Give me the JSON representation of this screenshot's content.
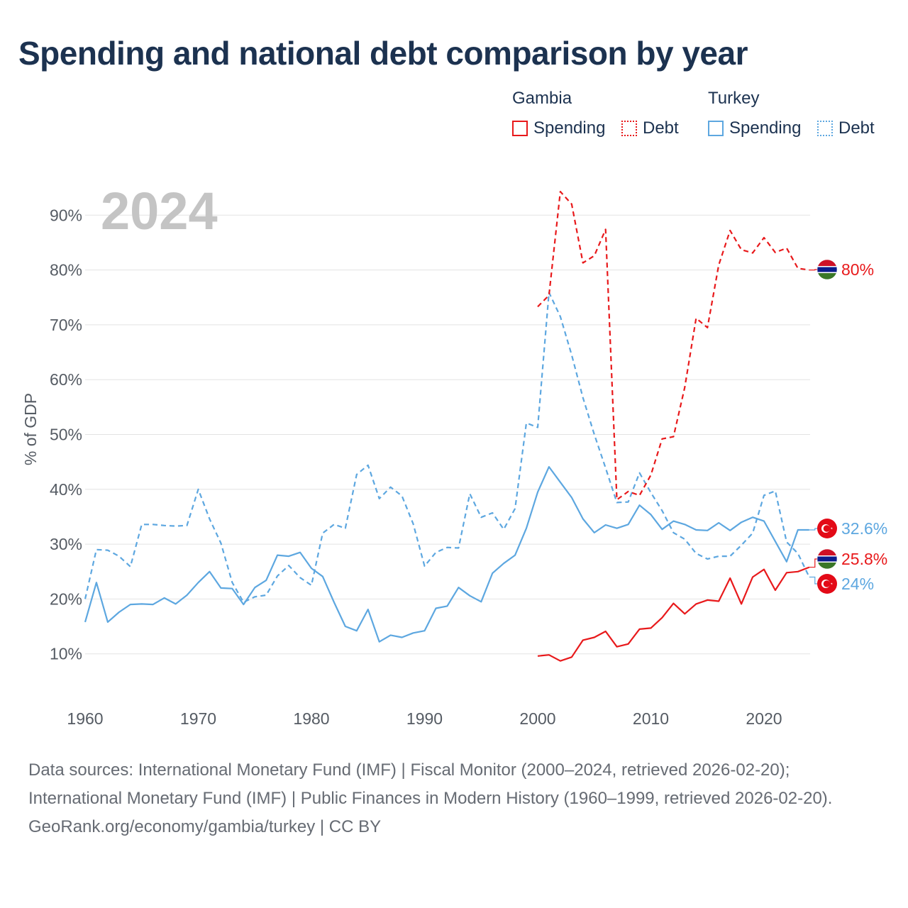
{
  "title": "Spending and national debt comparison by year",
  "legend": {
    "groups": [
      {
        "country": "Gambia",
        "items": [
          {
            "label": "Spending",
            "style": "solid",
            "color": "#e8191b"
          },
          {
            "label": "Debt",
            "style": "dotted",
            "color": "#e8191b"
          }
        ]
      },
      {
        "country": "Turkey",
        "items": [
          {
            "label": "Spending",
            "style": "solid",
            "color": "#5da7e0"
          },
          {
            "label": "Debt",
            "style": "dotted",
            "color": "#5da7e0"
          }
        ]
      }
    ]
  },
  "footer": {
    "sources": "Data sources: International Monetary Fund (IMF) | Fiscal Monitor (2000–2024, retrieved 2026-02-20); International Monetary Fund (IMF) | Public Finances in Modern History (1960–1999, retrieved 2026-02-20).",
    "credit": "GeoRank.org/economy/gambia/turkey | CC BY"
  },
  "chart_data": {
    "type": "line",
    "year_label": "2024",
    "ylabel": "% of GDP",
    "xlabel": "",
    "xlim": [
      1960,
      2024
    ],
    "ylim": [
      0,
      95
    ],
    "x_ticks": [
      1960,
      1970,
      1980,
      1990,
      2000,
      2010,
      2020
    ],
    "y_ticks": [
      10,
      20,
      30,
      40,
      50,
      60,
      70,
      80,
      90
    ],
    "y_tick_labels": [
      "10%",
      "20%",
      "30%",
      "40%",
      "50%",
      "60%",
      "70%",
      "80%",
      "90%"
    ],
    "grid": true,
    "series": [
      {
        "name": "Turkey Spending",
        "country": "Turkey",
        "measure": "Spending",
        "color": "#5da7e0",
        "dash": false,
        "x": [
          1960,
          1961,
          1962,
          1963,
          1964,
          1965,
          1966,
          1967,
          1968,
          1969,
          1970,
          1971,
          1972,
          1973,
          1974,
          1975,
          1976,
          1977,
          1978,
          1979,
          1980,
          1981,
          1982,
          1983,
          1984,
          1985,
          1986,
          1987,
          1988,
          1989,
          1990,
          1991,
          1992,
          1993,
          1994,
          1995,
          1996,
          1997,
          1998,
          1999,
          2000,
          2001,
          2002,
          2003,
          2004,
          2005,
          2006,
          2007,
          2008,
          2009,
          2010,
          2011,
          2012,
          2013,
          2014,
          2015,
          2016,
          2017,
          2018,
          2019,
          2020,
          2021,
          2022,
          2023,
          2024
        ],
        "values": [
          15.8,
          23.0,
          15.8,
          17.6,
          19.0,
          19.1,
          19.0,
          20.2,
          19.1,
          20.7,
          23.0,
          25.0,
          22.0,
          21.9,
          19.0,
          22.1,
          23.4,
          28.0,
          27.8,
          28.5,
          25.6,
          24.1,
          19.4,
          15.0,
          14.2,
          18.1,
          12.2,
          13.4,
          13.0,
          13.8,
          14.2,
          18.3,
          18.7,
          22.1,
          20.6,
          19.5,
          24.7,
          26.5,
          28.0,
          32.9,
          39.5,
          44.1,
          41.3,
          38.5,
          34.6,
          32.1,
          33.5,
          32.9,
          33.6,
          37.1,
          35.4,
          32.7,
          34.2,
          33.6,
          32.6,
          32.5,
          33.9,
          32.5,
          34.0,
          34.9,
          34.2,
          30.5,
          26.8,
          32.6,
          32.6
        ],
        "end_label": "32.6%"
      },
      {
        "name": "Turkey Debt",
        "country": "Turkey",
        "measure": "Debt",
        "color": "#5da7e0",
        "dash": true,
        "x": [
          1960,
          1961,
          1962,
          1963,
          1964,
          1965,
          1966,
          1967,
          1968,
          1969,
          1970,
          1971,
          1972,
          1973,
          1974,
          1975,
          1976,
          1977,
          1978,
          1979,
          1980,
          1981,
          1982,
          1983,
          1984,
          1985,
          1986,
          1987,
          1988,
          1989,
          1990,
          1991,
          1992,
          1993,
          1994,
          1995,
          1996,
          1997,
          1998,
          1999,
          2000,
          2001,
          2002,
          2003,
          2004,
          2005,
          2006,
          2007,
          2008,
          2009,
          2010,
          2011,
          2012,
          2013,
          2014,
          2015,
          2016,
          2017,
          2018,
          2019,
          2020,
          2021,
          2022,
          2023,
          2024
        ],
        "values": [
          20.0,
          29.0,
          28.9,
          27.8,
          25.9,
          33.6,
          33.6,
          33.4,
          33.3,
          33.4,
          40.0,
          34.6,
          30.2,
          23.0,
          19.4,
          20.4,
          20.7,
          24.2,
          26.1,
          23.9,
          22.5,
          32.0,
          33.6,
          32.9,
          42.7,
          44.4,
          38.3,
          40.4,
          38.8,
          33.7,
          26.0,
          28.5,
          29.4,
          29.3,
          39.2,
          34.9,
          35.7,
          32.7,
          36.5,
          52.1,
          51.3,
          75.9,
          71.5,
          64.5,
          56.7,
          50.0,
          43.9,
          37.6,
          37.7,
          43.0,
          39.4,
          36.1,
          32.1,
          30.9,
          28.3,
          27.3,
          27.8,
          27.8,
          29.8,
          32.0,
          38.9,
          39.7,
          30.4,
          28.3,
          24.0
        ],
        "end_label": "24%"
      },
      {
        "name": "Gambia Spending",
        "country": "Gambia",
        "measure": "Spending",
        "color": "#e8191b",
        "dash": false,
        "x": [
          2000,
          2001,
          2002,
          2003,
          2004,
          2005,
          2006,
          2007,
          2008,
          2009,
          2010,
          2011,
          2012,
          2013,
          2014,
          2015,
          2016,
          2017,
          2018,
          2019,
          2020,
          2021,
          2022,
          2023,
          2024
        ],
        "values": [
          9.6,
          9.8,
          8.7,
          9.4,
          12.5,
          13.0,
          14.1,
          11.3,
          11.8,
          14.5,
          14.7,
          16.6,
          19.2,
          17.3,
          19.1,
          19.8,
          19.6,
          23.8,
          19.1,
          24.0,
          25.4,
          21.6,
          24.8,
          25.0,
          25.8
        ],
        "end_label": "25.8%"
      },
      {
        "name": "Gambia Debt",
        "country": "Gambia",
        "measure": "Debt",
        "color": "#e8191b",
        "dash": true,
        "x": [
          2000,
          2001,
          2002,
          2003,
          2004,
          2005,
          2006,
          2007,
          2008,
          2009,
          2010,
          2011,
          2012,
          2013,
          2014,
          2015,
          2016,
          2017,
          2018,
          2019,
          2020,
          2021,
          2022,
          2023,
          2024
        ],
        "values": [
          73.3,
          75.4,
          94.3,
          92.0,
          81.3,
          82.6,
          87.4,
          38.1,
          39.6,
          38.9,
          42.6,
          49.2,
          49.6,
          58.6,
          71.2,
          69.5,
          80.9,
          87.2,
          83.7,
          83.1,
          85.9,
          83.2,
          84.0,
          80.3,
          80.0
        ],
        "end_label": "80%"
      }
    ],
    "end_markers": [
      {
        "series": "Gambia Debt",
        "flag": "gambia-flag-icon",
        "value": 80.0,
        "label": "80%",
        "color": "#e8191b"
      },
      {
        "series": "Turkey Spending",
        "flag": "turkey-flag-icon",
        "value": 32.6,
        "label": "32.6%",
        "color": "#5da7e0"
      },
      {
        "series": "Gambia Spending",
        "flag": "gambia-flag-icon",
        "value": 25.8,
        "label": "25.8%",
        "color": "#e8191b"
      },
      {
        "series": "Turkey Debt",
        "flag": "turkey-flag-icon",
        "value": 24.0,
        "label": "24%",
        "color": "#5da7e0"
      }
    ]
  }
}
